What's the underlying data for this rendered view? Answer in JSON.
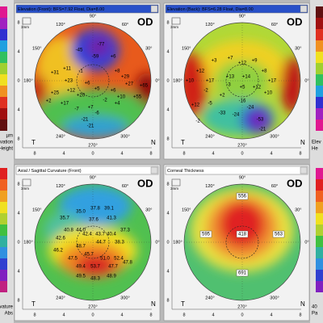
{
  "panels": [
    {
      "header": "Elevation (Front): BFS=7.92 Float, Dia=8.00",
      "eye": "OD",
      "scale_mm": "3mm",
      "angles": [
        "90°",
        "120°",
        "60°",
        "150°",
        "30°",
        "180°",
        "0°",
        "240°",
        "270°",
        "300°"
      ],
      "x_ticks": [
        "8",
        "4",
        "0",
        "4",
        "8"
      ],
      "y_ticks": [
        "8",
        "4",
        "0",
        "4",
        "8"
      ],
      "orientation": [
        "T",
        "N"
      ],
      "values": [
        "-77",
        "-59",
        "-45",
        "+6",
        "+11",
        "-1",
        "+31",
        "+8",
        "+29",
        "+23",
        "+27",
        "+6",
        "+12",
        "+25",
        "+20",
        "+5",
        "+6",
        "+10",
        "+65",
        "+55",
        "-2",
        "+4",
        "+17",
        "-7",
        "+7",
        "-6",
        "-21",
        "-21",
        "+2"
      ]
    },
    {
      "header": "Elevation (Back): BFS=6.28 Float, Dia=8.00",
      "eye": "OD",
      "scale_mm": "3mm",
      "angles": [
        "90°",
        "120°",
        "60°",
        "150°",
        "30°",
        "180°",
        "0°",
        "240°",
        "270°",
        "300°"
      ],
      "x_ticks": [
        "8",
        "4",
        "0",
        "4",
        "8"
      ],
      "y_ticks": [
        "8",
        "4",
        "0",
        "4",
        "8"
      ],
      "orientation": [
        "T",
        "N"
      ],
      "values": [
        "+12",
        "+3",
        "+7",
        "+12",
        "+9",
        "+8",
        "+10",
        "+17",
        "+13",
        "+14",
        "+17",
        "-3",
        "+5",
        "+12",
        "-2",
        "+2",
        "+10",
        "-16",
        "-24",
        "-33",
        "-24",
        "-53",
        "+12",
        "-5",
        "-2",
        "-21"
      ]
    },
    {
      "header": "Axial / Sagittal Curvature (Front)",
      "eye": "OD",
      "scale_mm": "3mm",
      "angles": [
        "90°",
        "120°",
        "60°",
        "150°",
        "30°",
        "180°",
        "0°",
        "240°",
        "270°",
        "300°"
      ],
      "x_ticks": [
        "8",
        "4",
        "0",
        "4",
        "8"
      ],
      "y_ticks": [
        "8",
        "4",
        "0",
        "4",
        "8"
      ],
      "orientation": [
        "T",
        "N"
      ],
      "values": [
        "39.1",
        "37.8",
        "35.0",
        "37.6",
        "41.3",
        "44.0",
        "40.8",
        "42.4",
        "43.7",
        "40.4",
        "38.3",
        "37.3",
        "42.6",
        "44.7",
        "46.2",
        "48.7",
        "45.7",
        "47.5",
        "51.0",
        "52.4",
        "49.4",
        "53.7",
        "47.7",
        "47.8",
        "49.5",
        "48.3",
        "48.9",
        "35.7"
      ]
    },
    {
      "header": "Corneal Thickness",
      "eye": "OD",
      "scale_mm": "3mm",
      "angles": [
        "90°",
        "120°",
        "60°",
        "150°",
        "30°",
        "180°",
        "0°",
        "240°",
        "270°",
        "300°"
      ],
      "x_ticks": [
        "8",
        "4",
        "0",
        "4",
        "8"
      ],
      "y_ticks": [
        "8",
        "4",
        "0",
        "4",
        "8"
      ],
      "orientation": [
        "T",
        "N"
      ],
      "values": [
        "556",
        "418",
        "595",
        "563",
        "691"
      ]
    }
  ],
  "left_scale": {
    "top": [
      "µm",
      "Elevation",
      "Height"
    ],
    "bottom": [
      "Curvature",
      "Abs"
    ]
  },
  "right_scale": {
    "top": [
      "Elev",
      "He"
    ],
    "bottom": [
      "40",
      "Pa"
    ]
  }
}
